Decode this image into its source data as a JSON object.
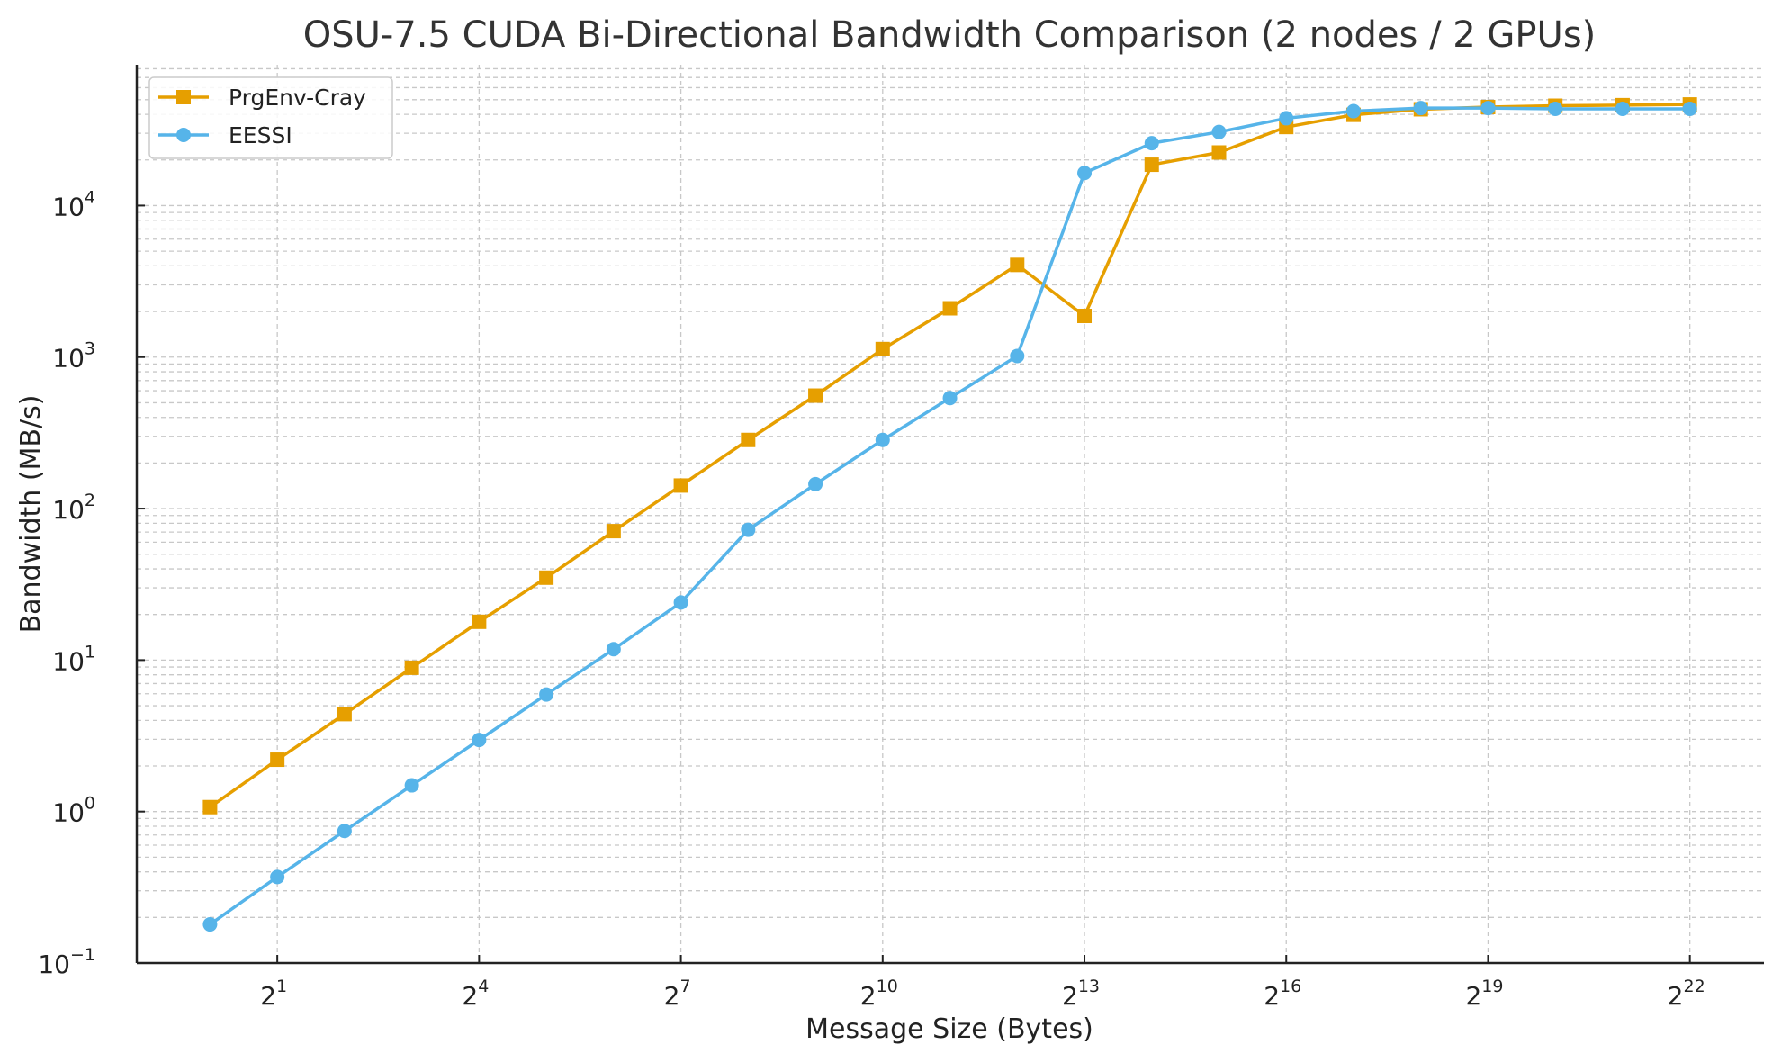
{
  "chart_data": {
    "type": "line",
    "title": "OSU-7.5 CUDA Bi-Directional Bandwidth Comparison (2 nodes / 2 GPUs)",
    "xlabel": "Message Size (Bytes)",
    "ylabel": "Bandwidth (MB/s)",
    "xscale": "log2",
    "yscale": "log10",
    "xlim": [
      0.47,
      9000000
    ],
    "ylim": [
      0.1,
      85000
    ],
    "grid": true,
    "legend_position": "top-left",
    "x_ticks": [
      {
        "exp": "1",
        "value": 2
      },
      {
        "exp": "4",
        "value": 16
      },
      {
        "exp": "7",
        "value": 128
      },
      {
        "exp": "10",
        "value": 1024
      },
      {
        "exp": "13",
        "value": 8192
      },
      {
        "exp": "16",
        "value": 65536
      },
      {
        "exp": "19",
        "value": 524288
      },
      {
        "exp": "22",
        "value": 4194304
      }
    ],
    "y_ticks": [
      {
        "exp": "−1",
        "value": 0.1
      },
      {
        "exp": "0",
        "value": 1
      },
      {
        "exp": "1",
        "value": 10
      },
      {
        "exp": "2",
        "value": 100
      },
      {
        "exp": "3",
        "value": 1000
      },
      {
        "exp": "4",
        "value": 10000
      }
    ],
    "x": [
      1,
      2,
      4,
      8,
      16,
      32,
      64,
      128,
      256,
      512,
      1024,
      2048,
      4096,
      8192,
      16384,
      32768,
      65536,
      131072,
      262144,
      524288,
      1048576,
      2097152,
      4194304
    ],
    "series": [
      {
        "name": "PrgEnv-Cray",
        "color": "#E69F00",
        "marker": "square",
        "values": [
          1.07,
          2.2,
          4.4,
          8.9,
          17.9,
          35,
          71,
          142,
          284,
          557,
          1130,
          2100,
          4060,
          1870,
          18600,
          22400,
          33000,
          39700,
          43200,
          44700,
          45600,
          46000,
          46500
        ]
      },
      {
        "name": "EESSI",
        "color": "#56B4E9",
        "marker": "circle",
        "values": [
          0.18,
          0.37,
          0.745,
          1.49,
          2.97,
          5.93,
          11.8,
          24,
          72.5,
          145,
          284,
          537,
          1018,
          16400,
          25800,
          30600,
          37700,
          42000,
          44000,
          44000,
          43500,
          43500,
          43500
        ]
      }
    ]
  }
}
